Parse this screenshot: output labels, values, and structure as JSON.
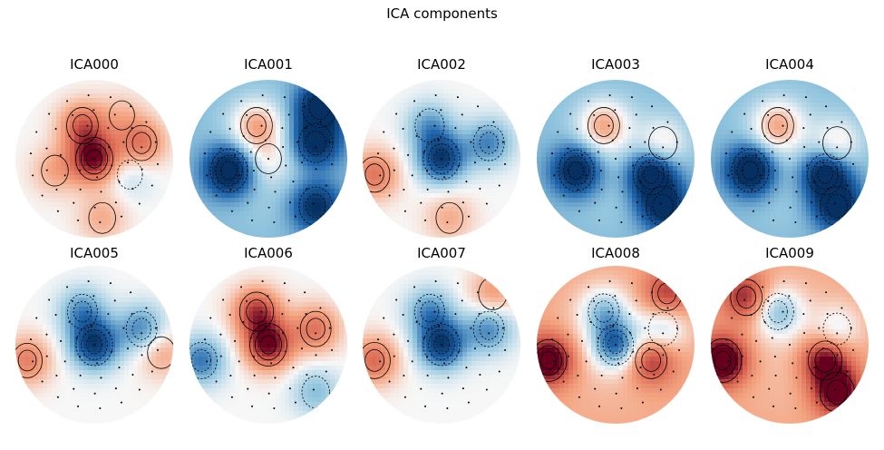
{
  "title": "ICA components",
  "chart_data": {
    "type": "heatmap",
    "title": "ICA components",
    "layout": "2 rows x 5 columns of scalp topomaps",
    "colormap": "RdBu_r (red = positive, blue = negative, white = zero)",
    "contours": "black lines, dashed for negative levels",
    "sensors": "small black dots",
    "components": [
      {
        "name": "ICA000",
        "overall_polarity": "mixed",
        "features": [
          {
            "region": "central",
            "polarity": "positive",
            "strength": 0.95
          },
          {
            "region": "frontal-left",
            "polarity": "positive",
            "strength": 0.6
          },
          {
            "region": "right-temporal",
            "polarity": "positive",
            "strength": 0.55
          },
          {
            "region": "left-temporal",
            "polarity": "positive",
            "strength": 0.3
          },
          {
            "region": "occipital",
            "polarity": "positive",
            "strength": 0.3
          },
          {
            "region": "frontal-right",
            "polarity": "positive",
            "strength": 0.2
          },
          {
            "region": "parietal-right",
            "polarity": "negative",
            "strength": 0.2
          }
        ]
      },
      {
        "name": "ICA001",
        "overall_polarity": "negative",
        "features": [
          {
            "region": "frontal-left",
            "polarity": "positive",
            "strength": 0.6
          },
          {
            "region": "central",
            "polarity": "positive",
            "strength": 0.25
          },
          {
            "region": "left-temporal",
            "polarity": "negative",
            "strength": 0.95
          },
          {
            "region": "right-temporal",
            "polarity": "negative",
            "strength": 0.75
          },
          {
            "region": "frontal-right-edge",
            "polarity": "negative",
            "strength": 0.8
          },
          {
            "region": "occipital-right",
            "polarity": "negative",
            "strength": 0.7
          }
        ]
      },
      {
        "name": "ICA002",
        "overall_polarity": "mixed",
        "features": [
          {
            "region": "central",
            "polarity": "negative",
            "strength": 0.9
          },
          {
            "region": "frontal-left",
            "polarity": "negative",
            "strength": 0.45
          },
          {
            "region": "right-temporal",
            "polarity": "negative",
            "strength": 0.55
          },
          {
            "region": "left-temporal-edge",
            "polarity": "positive",
            "strength": 0.55
          },
          {
            "region": "occipital",
            "polarity": "positive",
            "strength": 0.3
          }
        ]
      },
      {
        "name": "ICA003",
        "overall_polarity": "negative",
        "features": [
          {
            "region": "frontal-left",
            "polarity": "positive",
            "strength": 0.6
          },
          {
            "region": "right-temporal",
            "polarity": "positive",
            "strength": 0.4
          },
          {
            "region": "left-temporal",
            "polarity": "negative",
            "strength": 0.85
          },
          {
            "region": "parietal-right",
            "polarity": "negative",
            "strength": 0.85
          },
          {
            "region": "occipital-right",
            "polarity": "negative",
            "strength": 0.75
          }
        ]
      },
      {
        "name": "ICA004",
        "overall_polarity": "negative",
        "features": [
          {
            "region": "frontal-left",
            "polarity": "positive",
            "strength": 0.6
          },
          {
            "region": "right-temporal",
            "polarity": "positive",
            "strength": 0.4
          },
          {
            "region": "left-temporal",
            "polarity": "negative",
            "strength": 0.95
          },
          {
            "region": "parietal-right",
            "polarity": "negative",
            "strength": 0.85
          },
          {
            "region": "occipital-right",
            "polarity": "negative",
            "strength": 0.75
          }
        ]
      },
      {
        "name": "ICA005",
        "overall_polarity": "mixed",
        "features": [
          {
            "region": "central",
            "polarity": "negative",
            "strength": 0.9
          },
          {
            "region": "frontal-left",
            "polarity": "negative",
            "strength": 0.5
          },
          {
            "region": "right-temporal",
            "polarity": "negative",
            "strength": 0.55
          },
          {
            "region": "left-temporal-edge",
            "polarity": "positive",
            "strength": 0.5
          },
          {
            "region": "right-edge",
            "polarity": "positive",
            "strength": 0.35
          }
        ]
      },
      {
        "name": "ICA006",
        "overall_polarity": "mixed",
        "features": [
          {
            "region": "central",
            "polarity": "positive",
            "strength": 0.95
          },
          {
            "region": "frontal-left",
            "polarity": "positive",
            "strength": 0.75
          },
          {
            "region": "right-temporal",
            "polarity": "positive",
            "strength": 0.55
          },
          {
            "region": "left-temporal-edge",
            "polarity": "negative",
            "strength": 0.6
          },
          {
            "region": "occipital-right",
            "polarity": "negative",
            "strength": 0.35
          }
        ]
      },
      {
        "name": "ICA007",
        "overall_polarity": "mixed",
        "features": [
          {
            "region": "central",
            "polarity": "negative",
            "strength": 0.9
          },
          {
            "region": "frontal-left",
            "polarity": "negative",
            "strength": 0.5
          },
          {
            "region": "right-temporal",
            "polarity": "negative",
            "strength": 0.55
          },
          {
            "region": "left-temporal-edge",
            "polarity": "positive",
            "strength": 0.6
          },
          {
            "region": "frontal-right-edge",
            "polarity": "positive",
            "strength": 0.4
          }
        ]
      },
      {
        "name": "ICA008",
        "overall_polarity": "positive",
        "features": [
          {
            "region": "central",
            "polarity": "negative",
            "strength": 0.85
          },
          {
            "region": "frontal-left",
            "polarity": "negative",
            "strength": 0.55
          },
          {
            "region": "right-temporal",
            "polarity": "negative",
            "strength": 0.45
          },
          {
            "region": "left-temporal-edge",
            "polarity": "positive",
            "strength": 0.9
          },
          {
            "region": "parietal-right",
            "polarity": "positive",
            "strength": 0.6
          },
          {
            "region": "frontal-right-edge",
            "polarity": "positive",
            "strength": 0.5
          }
        ]
      },
      {
        "name": "ICA009",
        "overall_polarity": "positive",
        "features": [
          {
            "region": "frontal-left",
            "polarity": "negative",
            "strength": 0.6
          },
          {
            "region": "right-temporal",
            "polarity": "negative",
            "strength": 0.35
          },
          {
            "region": "left-temporal-edge",
            "polarity": "positive",
            "strength": 1.0
          },
          {
            "region": "parietal-right",
            "polarity": "positive",
            "strength": 0.75
          },
          {
            "region": "occipital-right",
            "polarity": "positive",
            "strength": 0.8
          },
          {
            "region": "frontal-top-left",
            "polarity": "positive",
            "strength": 0.6
          }
        ]
      }
    ]
  }
}
